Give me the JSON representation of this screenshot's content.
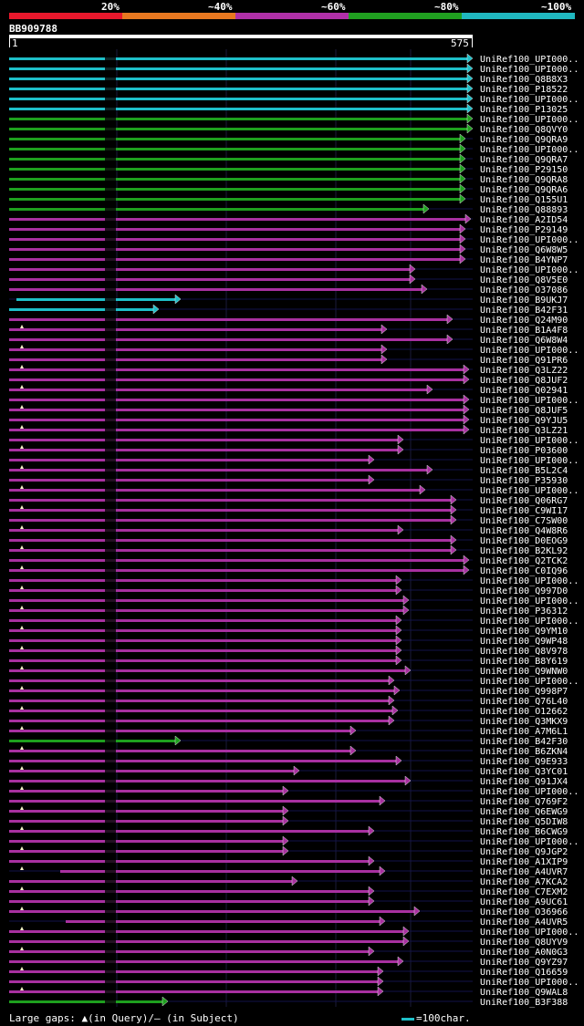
{
  "legend": {
    "labels": [
      "20%",
      "~40%",
      "~60%",
      "~80%",
      "~100%"
    ],
    "colors": [
      "#e8182c",
      "#e87820",
      "#b030a8",
      "#20a020",
      "#20b8c0"
    ]
  },
  "query": {
    "name": "BB909788",
    "start": "1",
    "end": "575",
    "length": 575
  },
  "footer": {
    "gaps_text": "Large gaps: ▲(in Query)/– (in Subject)",
    "scale_text": "=100char."
  },
  "hits": [
    {
      "name": "UniRef100_UPI000..",
      "c": "cyan",
      "e": 518
    },
    {
      "name": "UniRef100_UPI000..",
      "c": "cyan",
      "e": 518
    },
    {
      "name": "UniRef100_Q8B8X3",
      "c": "cyan",
      "e": 518
    },
    {
      "name": "UniRef100_P18522",
      "c": "cyan",
      "e": 518
    },
    {
      "name": "UniRef100_UPI000..",
      "c": "cyan",
      "e": 518
    },
    {
      "name": "UniRef100_P13025",
      "c": "cyan",
      "e": 518
    },
    {
      "name": "UniRef100_UPI000..",
      "c": "green",
      "e": 518
    },
    {
      "name": "UniRef100_Q8QVY0",
      "c": "green",
      "e": 518
    },
    {
      "name": "UniRef100_Q9QRA9",
      "c": "green",
      "e": 510
    },
    {
      "name": "UniRef100_UPI000..",
      "c": "green",
      "e": 510
    },
    {
      "name": "UniRef100_Q9QRA7",
      "c": "green",
      "e": 510
    },
    {
      "name": "UniRef100_P29150",
      "c": "green",
      "e": 510
    },
    {
      "name": "UniRef100_Q9QRA8",
      "c": "green",
      "e": 510
    },
    {
      "name": "UniRef100_Q9QRA6",
      "c": "green",
      "e": 510
    },
    {
      "name": "UniRef100_Q155U1",
      "c": "green",
      "e": 510
    },
    {
      "name": "UniRef100_Q88893",
      "c": "green",
      "e": 470
    },
    {
      "name": "UniRef100_A2ID54",
      "c": "mag",
      "e": 516
    },
    {
      "name": "UniRef100_P29149",
      "c": "mag",
      "e": 510
    },
    {
      "name": "UniRef100_UPI000..",
      "c": "mag",
      "e": 510
    },
    {
      "name": "UniRef100_Q6W8W5",
      "c": "mag",
      "e": 510
    },
    {
      "name": "UniRef100_B4YNP7",
      "c": "mag",
      "e": 510
    },
    {
      "name": "UniRef100_UPI000..",
      "c": "mag",
      "e": 455
    },
    {
      "name": "UniRef100_Q8V5E0",
      "c": "mag",
      "e": 455
    },
    {
      "name": "UniRef100_O37086",
      "c": "mag",
      "e": 468
    },
    {
      "name": "UniRef100_B9UKJ7",
      "c": "cyan",
      "e": 198,
      "s": 18
    },
    {
      "name": "UniRef100_B42F31",
      "c": "cyan",
      "e": 174
    },
    {
      "name": "UniRef100_Q24M90",
      "c": "mag",
      "e": 496
    },
    {
      "name": "UniRef100_B1A4F8",
      "c": "mag",
      "e": 424
    },
    {
      "name": "UniRef100_Q6W8W4",
      "c": "mag",
      "e": 496
    },
    {
      "name": "UniRef100_UPI000..",
      "c": "mag",
      "e": 424
    },
    {
      "name": "UniRef100_Q91PR6",
      "c": "mag",
      "e": 424
    },
    {
      "name": "UniRef100_Q3LZ22",
      "c": "mag",
      "e": 514
    },
    {
      "name": "UniRef100_Q8JUF2",
      "c": "mag",
      "e": 514
    },
    {
      "name": "UniRef100_Q02941",
      "c": "mag",
      "e": 474
    },
    {
      "name": "UniRef100_UPI000..",
      "c": "mag",
      "e": 514
    },
    {
      "name": "UniRef100_Q8JUF5",
      "c": "mag",
      "e": 514
    },
    {
      "name": "UniRef100_Q9YJU5",
      "c": "mag",
      "e": 514
    },
    {
      "name": "UniRef100_Q3LZ21",
      "c": "mag",
      "e": 514
    },
    {
      "name": "UniRef100_UPI000..",
      "c": "mag",
      "e": 442
    },
    {
      "name": "UniRef100_P03600",
      "c": "mag",
      "e": 442
    },
    {
      "name": "UniRef100_UPI000..",
      "c": "mag",
      "e": 410
    },
    {
      "name": "UniRef100_B5L2C4",
      "c": "mag",
      "e": 474
    },
    {
      "name": "UniRef100_P35930",
      "c": "mag",
      "e": 410
    },
    {
      "name": "UniRef100_UPI000..",
      "c": "mag",
      "e": 466
    },
    {
      "name": "UniRef100_Q06RG7",
      "c": "mag",
      "e": 500
    },
    {
      "name": "UniRef100_C9WI17",
      "c": "mag",
      "e": 500
    },
    {
      "name": "UniRef100_C7SW00",
      "c": "mag",
      "e": 500
    },
    {
      "name": "UniRef100_Q4W8R6",
      "c": "mag",
      "e": 442
    },
    {
      "name": "UniRef100_D0EOG9",
      "c": "mag",
      "e": 500
    },
    {
      "name": "UniRef100_B2KL92",
      "c": "mag",
      "e": 500
    },
    {
      "name": "UniRef100_Q2TCK2",
      "c": "mag",
      "e": 514
    },
    {
      "name": "UniRef100_C0IQ96",
      "c": "mag",
      "e": 514
    },
    {
      "name": "UniRef100_UPI000..",
      "c": "mag",
      "e": 440
    },
    {
      "name": "UniRef100_Q997D0",
      "c": "mag",
      "e": 440
    },
    {
      "name": "UniRef100_UPI000..",
      "c": "mag",
      "e": 448
    },
    {
      "name": "UniRef100_P36312",
      "c": "mag",
      "e": 448
    },
    {
      "name": "UniRef100_UPI000..",
      "c": "mag",
      "e": 440
    },
    {
      "name": "UniRef100_Q9YM10",
      "c": "mag",
      "e": 440
    },
    {
      "name": "UniRef100_Q9WP48",
      "c": "mag",
      "e": 440
    },
    {
      "name": "UniRef100_Q8V978",
      "c": "mag",
      "e": 440
    },
    {
      "name": "UniRef100_B8Y619",
      "c": "mag",
      "e": 440
    },
    {
      "name": "UniRef100_Q9WNW0",
      "c": "mag",
      "e": 450
    },
    {
      "name": "UniRef100_UPI000..",
      "c": "mag",
      "e": 432
    },
    {
      "name": "UniRef100_Q998P7",
      "c": "mag",
      "e": 438
    },
    {
      "name": "UniRef100_Q76L40",
      "c": "mag",
      "e": 432
    },
    {
      "name": "UniRef100_O12662",
      "c": "mag",
      "e": 436
    },
    {
      "name": "UniRef100_Q3MKX9",
      "c": "mag",
      "e": 432
    },
    {
      "name": "UniRef100_A7M6L1",
      "c": "mag",
      "e": 390
    },
    {
      "name": "UniRef100_B42F30",
      "c": "green",
      "e": 198
    },
    {
      "name": "UniRef100_B6ZKN4",
      "c": "mag",
      "e": 390
    },
    {
      "name": "UniRef100_Q9E933",
      "c": "mag",
      "e": 440
    },
    {
      "name": "UniRef100_Q3YC01",
      "c": "mag",
      "e": 328
    },
    {
      "name": "UniRef100_Q91JX4",
      "c": "mag",
      "e": 450
    },
    {
      "name": "UniRef100_UPI000..",
      "c": "mag",
      "e": 316
    },
    {
      "name": "UniRef100_Q769F2",
      "c": "mag",
      "e": 422
    },
    {
      "name": "UniRef100_Q6EWG9",
      "c": "mag",
      "e": 316
    },
    {
      "name": "UniRef100_Q5DIW8",
      "c": "mag",
      "e": 316
    },
    {
      "name": "UniRef100_B6CWG9",
      "c": "mag",
      "e": 410
    },
    {
      "name": "UniRef100_UPI000..",
      "c": "mag",
      "e": 316
    },
    {
      "name": "UniRef100_Q9JGP2",
      "c": "mag",
      "e": 316
    },
    {
      "name": "UniRef100_A1XIP9",
      "c": "mag",
      "e": 410
    },
    {
      "name": "UniRef100_A4UVR7",
      "c": "mag",
      "e": 422,
      "s": 66
    },
    {
      "name": "UniRef100_A7KCA2",
      "c": "mag",
      "e": 326
    },
    {
      "name": "UniRef100_C7EXM2",
      "c": "mag",
      "e": 410
    },
    {
      "name": "UniRef100_A9UC61",
      "c": "mag",
      "e": 410
    },
    {
      "name": "UniRef100_O36966",
      "c": "mag",
      "e": 460
    },
    {
      "name": "UniRef100_A4UVR5",
      "c": "mag",
      "e": 422,
      "s": 72
    },
    {
      "name": "UniRef100_UPI000..",
      "c": "mag",
      "e": 448
    },
    {
      "name": "UniRef100_Q8UYV9",
      "c": "mag",
      "e": 448
    },
    {
      "name": "UniRef100_A0N0G3",
      "c": "mag",
      "e": 410
    },
    {
      "name": "UniRef100_Q9YZ97",
      "c": "mag",
      "e": 442
    },
    {
      "name": "UniRef100_Q16659",
      "c": "mag",
      "e": 420
    },
    {
      "name": "UniRef100_UPI000..",
      "c": "mag",
      "e": 420
    },
    {
      "name": "UniRef100_Q9WAL8",
      "c": "mag",
      "e": 420
    },
    {
      "name": "UniRef100_B3F388",
      "c": "green",
      "e": 184
    }
  ]
}
